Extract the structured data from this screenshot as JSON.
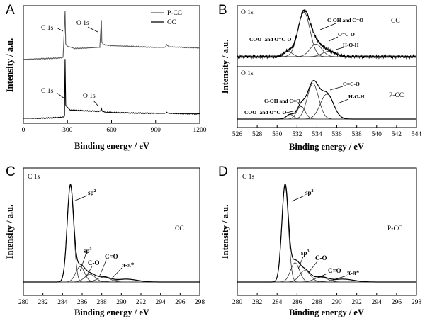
{
  "panels": {
    "A": {
      "letter": "A"
    },
    "B": {
      "letter": "B"
    },
    "C": {
      "letter": "C"
    },
    "D": {
      "letter": "D"
    }
  },
  "chart_data": [
    {
      "panel": "A",
      "type": "line",
      "xlabel": "Binding energy / eV",
      "ylabel": "Intensity / a.u.",
      "xlim": [
        0,
        1200
      ],
      "xticks": [
        "0",
        "300",
        "600",
        "900",
        "1200"
      ],
      "legend": {
        "placement": "top-right",
        "entries": [
          "P-CC",
          "CC"
        ]
      },
      "series": [
        {
          "name": "P-CC",
          "color": "#5a5a5a",
          "x": [
            0,
            100,
            200,
            270,
            284,
            288,
            300,
            350,
            450,
            520,
            531,
            534,
            545,
            600,
            700,
            800,
            900,
            965,
            975,
            990,
            1100,
            1200
          ],
          "y": [
            0.56,
            0.565,
            0.57,
            0.575,
            1.0,
            0.7,
            0.68,
            0.66,
            0.665,
            0.67,
            0.92,
            0.72,
            0.695,
            0.685,
            0.68,
            0.675,
            0.67,
            0.67,
            0.695,
            0.675,
            0.67,
            0.665
          ]
        },
        {
          "name": "CC",
          "color": "#000000",
          "x": [
            0,
            100,
            200,
            270,
            280,
            284,
            288,
            300,
            320,
            400,
            500,
            525,
            531,
            536,
            560,
            700,
            900,
            965,
            975,
            990,
            1200
          ],
          "y": [
            0.02,
            0.02,
            0.025,
            0.03,
            0.04,
            0.56,
            0.14,
            0.12,
            0.095,
            0.09,
            0.085,
            0.085,
            0.11,
            0.085,
            0.075,
            0.07,
            0.065,
            0.065,
            0.075,
            0.065,
            0.06
          ]
        }
      ],
      "annotations": [
        {
          "text": "C 1s",
          "series": "P-CC"
        },
        {
          "text": "O 1s",
          "series": "P-CC"
        },
        {
          "text": "C 1s",
          "series": "CC"
        },
        {
          "text": "O 1s",
          "series": "CC"
        }
      ]
    },
    {
      "panel": "B",
      "type": "line",
      "xlabel": "Binding energy / eV",
      "ylabel": "Intensity / a.u.",
      "xlim": [
        526,
        544
      ],
      "xticks": [
        "526",
        "528",
        "530",
        "532",
        "534",
        "536",
        "538",
        "540",
        "542",
        "544"
      ],
      "subplots": [
        {
          "label": "O 1s",
          "sample": "CC",
          "components": [
            {
              "name": "COO- and O=C-O",
              "center": 531.1,
              "height": 0.12,
              "width": 0.7
            },
            {
              "name": "C-OH and C=O",
              "center": 532.7,
              "height": 1.0,
              "width": 1.0
            },
            {
              "name": "O=C-O",
              "center": 533.9,
              "height": 0.28,
              "width": 1.0
            },
            {
              "name": "H-O-H",
              "center": 535.2,
              "height": 0.12,
              "width": 1.1
            }
          ]
        },
        {
          "label": "O 1s",
          "sample": "P-CC",
          "components": [
            {
              "name": "COO- and O=C-O",
              "center": 531.3,
              "height": 0.1,
              "width": 0.6
            },
            {
              "name": "C-OH and C=O",
              "center": 532.4,
              "height": 0.28,
              "width": 0.7
            },
            {
              "name": "O=C-O",
              "center": 533.6,
              "height": 0.78,
              "width": 0.95
            },
            {
              "name": "H-O-H",
              "center": 535.0,
              "height": 0.55,
              "width": 1.1
            }
          ]
        }
      ]
    },
    {
      "panel": "C",
      "type": "line",
      "label": "C 1s",
      "sample": "CC",
      "xlabel": "Binding energy / eV",
      "ylabel": "Intensity / a.u.",
      "xlim": [
        280,
        298
      ],
      "xticks": [
        "280",
        "282",
        "284",
        "286",
        "288",
        "290",
        "292",
        "294",
        "296",
        "298"
      ],
      "components": [
        {
          "name": "sp2",
          "center": 284.8,
          "height": 1.0,
          "width": 0.55
        },
        {
          "name": "sp3",
          "center": 285.8,
          "height": 0.16,
          "width": 0.75
        },
        {
          "name": "C-O",
          "center": 286.8,
          "height": 0.08,
          "width": 0.9
        },
        {
          "name": "C=O",
          "center": 288.2,
          "height": 0.05,
          "width": 1.1
        },
        {
          "name": "π-π*",
          "center": 290.5,
          "height": 0.03,
          "width": 1.8
        }
      ]
    },
    {
      "panel": "D",
      "type": "line",
      "label": "C 1s",
      "sample": "P-CC",
      "xlabel": "Binding energy / eV",
      "ylabel": "Intensity / a.u.",
      "xlim": [
        280,
        298
      ],
      "xticks": [
        "280",
        "282",
        "284",
        "286",
        "288",
        "290",
        "292",
        "294",
        "296",
        "298"
      ],
      "components": [
        {
          "name": "sp2",
          "center": 284.8,
          "height": 1.0,
          "width": 0.55
        },
        {
          "name": "sp3",
          "center": 285.8,
          "height": 0.2,
          "width": 0.75
        },
        {
          "name": "C-O",
          "center": 286.8,
          "height": 0.12,
          "width": 0.9
        },
        {
          "name": "C=O",
          "center": 288.4,
          "height": 0.05,
          "width": 1.1
        },
        {
          "name": "π-π*",
          "center": 290.6,
          "height": 0.03,
          "width": 1.8
        }
      ]
    }
  ]
}
